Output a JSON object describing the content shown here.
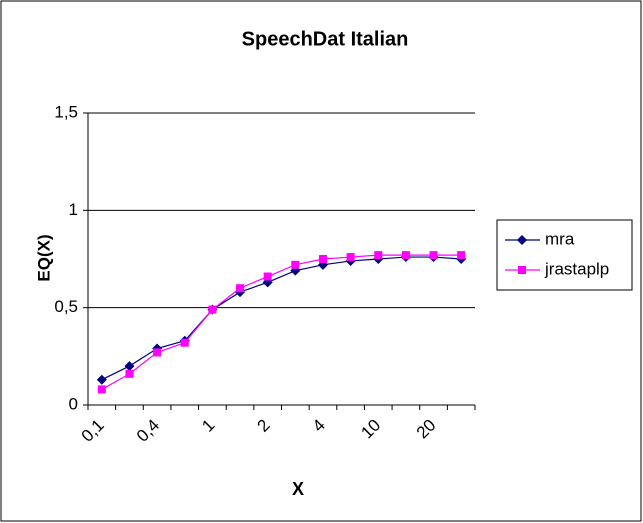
{
  "chart_data": {
    "type": "line",
    "title": "SpeechDat Italian",
    "xlabel": "X",
    "ylabel": "EQ(X)",
    "categories": [
      "0,1",
      null,
      "0,4",
      null,
      "1",
      null,
      "2",
      null,
      "4",
      null,
      "10",
      null,
      "20",
      null
    ],
    "series": [
      {
        "name": "mra",
        "color": "#000080",
        "marker": "diamond",
        "values": [
          0.13,
          0.2,
          0.29,
          0.33,
          0.49,
          0.58,
          0.63,
          0.69,
          0.72,
          0.74,
          0.75,
          0.76,
          0.76,
          0.75
        ]
      },
      {
        "name": "jrastaplp",
        "color": "#ff00ff",
        "marker": "square",
        "values": [
          0.08,
          0.16,
          0.27,
          0.32,
          0.49,
          0.6,
          0.66,
          0.72,
          0.75,
          0.76,
          0.77,
          0.77,
          0.77,
          0.77
        ]
      }
    ],
    "ylim": [
      0,
      1.5
    ],
    "yticks": [
      0,
      {
        "value": 0.5,
        "label": "0,5"
      },
      1,
      {
        "value": 1.5,
        "label": "1,5"
      }
    ],
    "grid": true,
    "legend": "right"
  }
}
